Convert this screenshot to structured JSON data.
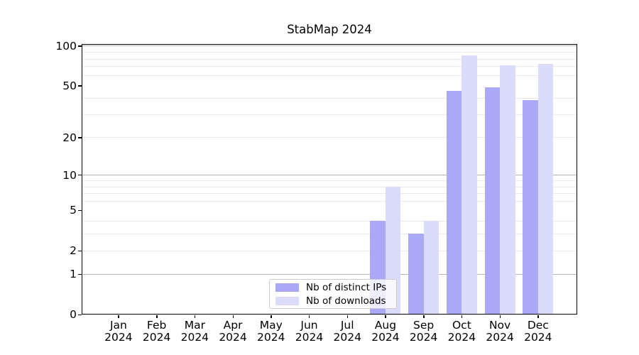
{
  "chart_data": {
    "type": "bar",
    "title": "StabMap 2024",
    "categories": [
      {
        "month": "Jan",
        "year": "2024"
      },
      {
        "month": "Feb",
        "year": "2024"
      },
      {
        "month": "Mar",
        "year": "2024"
      },
      {
        "month": "Apr",
        "year": "2024"
      },
      {
        "month": "May",
        "year": "2024"
      },
      {
        "month": "Jun",
        "year": "2024"
      },
      {
        "month": "Jul",
        "year": "2024"
      },
      {
        "month": "Aug",
        "year": "2024"
      },
      {
        "month": "Sep",
        "year": "2024"
      },
      {
        "month": "Oct",
        "year": "2024"
      },
      {
        "month": "Nov",
        "year": "2024"
      },
      {
        "month": "Dec",
        "year": "2024"
      }
    ],
    "series": [
      {
        "name": "Nb of distinct IPs",
        "color": "#a9a9f8",
        "values": [
          0,
          0,
          0,
          0,
          0,
          0,
          0,
          4,
          3,
          46,
          49,
          39
        ]
      },
      {
        "name": "Nb of downloads",
        "color": "#dbdbfb",
        "values": [
          0,
          0,
          0,
          0,
          0,
          0,
          0,
          8,
          4,
          85,
          72,
          73
        ]
      }
    ],
    "yscale": "log1p",
    "y_ticks": [
      0,
      1,
      2,
      5,
      10,
      20,
      50,
      100
    ],
    "minor_grid_values": [
      2,
      3,
      4,
      6,
      7,
      8,
      9,
      20,
      30,
      40,
      60,
      70,
      80,
      90
    ],
    "major_grid_values": [
      1,
      10,
      100
    ],
    "ylim": [
      0,
      104
    ],
    "xlabel": "",
    "ylabel": "",
    "grid": true,
    "legend_position": "inside bottom-center",
    "colors": {
      "bar_dark": "#a9a9f8",
      "bar_light": "#dbdbfb",
      "grid_major": "#b4b4b4",
      "grid_minor": "#e9e9ec",
      "spine": "#000000",
      "background": "#ffffff"
    }
  }
}
